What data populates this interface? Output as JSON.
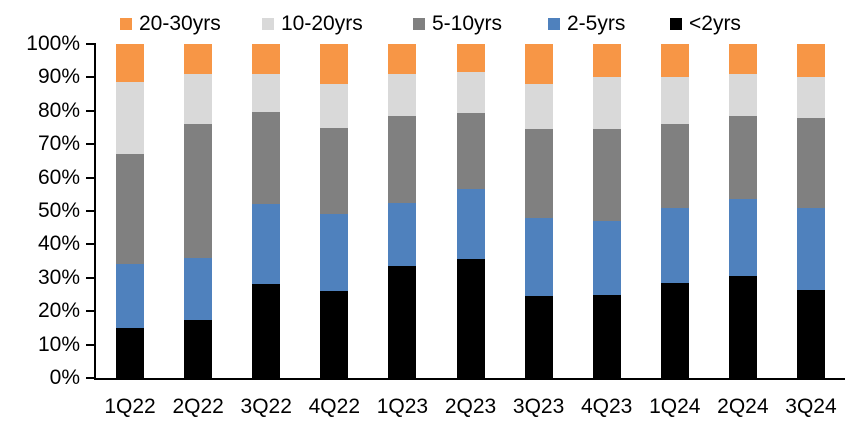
{
  "chart_data": {
    "type": "bar",
    "subtype": "stacked-100-percent",
    "title": "",
    "xlabel": "",
    "ylabel": "",
    "grid": false,
    "categories": [
      "1Q22",
      "2Q22",
      "3Q22",
      "4Q22",
      "1Q23",
      "2Q23",
      "3Q23",
      "4Q23",
      "1Q24",
      "2Q24",
      "3Q24"
    ],
    "series": [
      {
        "name": "<2yrs",
        "color": "#000000",
        "values": [
          15,
          17.5,
          28,
          26,
          33.5,
          35.5,
          24.5,
          25,
          28.5,
          30.5,
          26.5
        ]
      },
      {
        "name": "2-5yrs",
        "color": "#4F81BD",
        "values": [
          19,
          18.5,
          24,
          23,
          19,
          21,
          23.5,
          22,
          22.5,
          23,
          24.5
        ]
      },
      {
        "name": "5-10yrs",
        "color": "#808080",
        "values": [
          33,
          40,
          27.5,
          26,
          26,
          23,
          26.5,
          27.5,
          25,
          25,
          27
        ]
      },
      {
        "name": "10-20yrs",
        "color": "#D9D9D9",
        "values": [
          21.5,
          15,
          11.5,
          13,
          12.5,
          12,
          13.5,
          15.5,
          14,
          12.5,
          12
        ]
      },
      {
        "name": "20-30yrs",
        "color": "#F79646",
        "values": [
          11.5,
          9,
          9,
          12,
          9,
          8.5,
          12,
          10,
          10,
          9,
          10
        ]
      }
    ],
    "legend": {
      "position": "top",
      "order": [
        "20-30yrs",
        "10-20yrs",
        "5-10yrs",
        "2-5yrs",
        "<2yrs"
      ]
    },
    "y_axis": {
      "min": 0,
      "max": 100,
      "tick_labels": [
        "0%",
        "10%",
        "20%",
        "30%",
        "40%",
        "50%",
        "60%",
        "70%",
        "80%",
        "90%",
        "100%"
      ]
    }
  }
}
